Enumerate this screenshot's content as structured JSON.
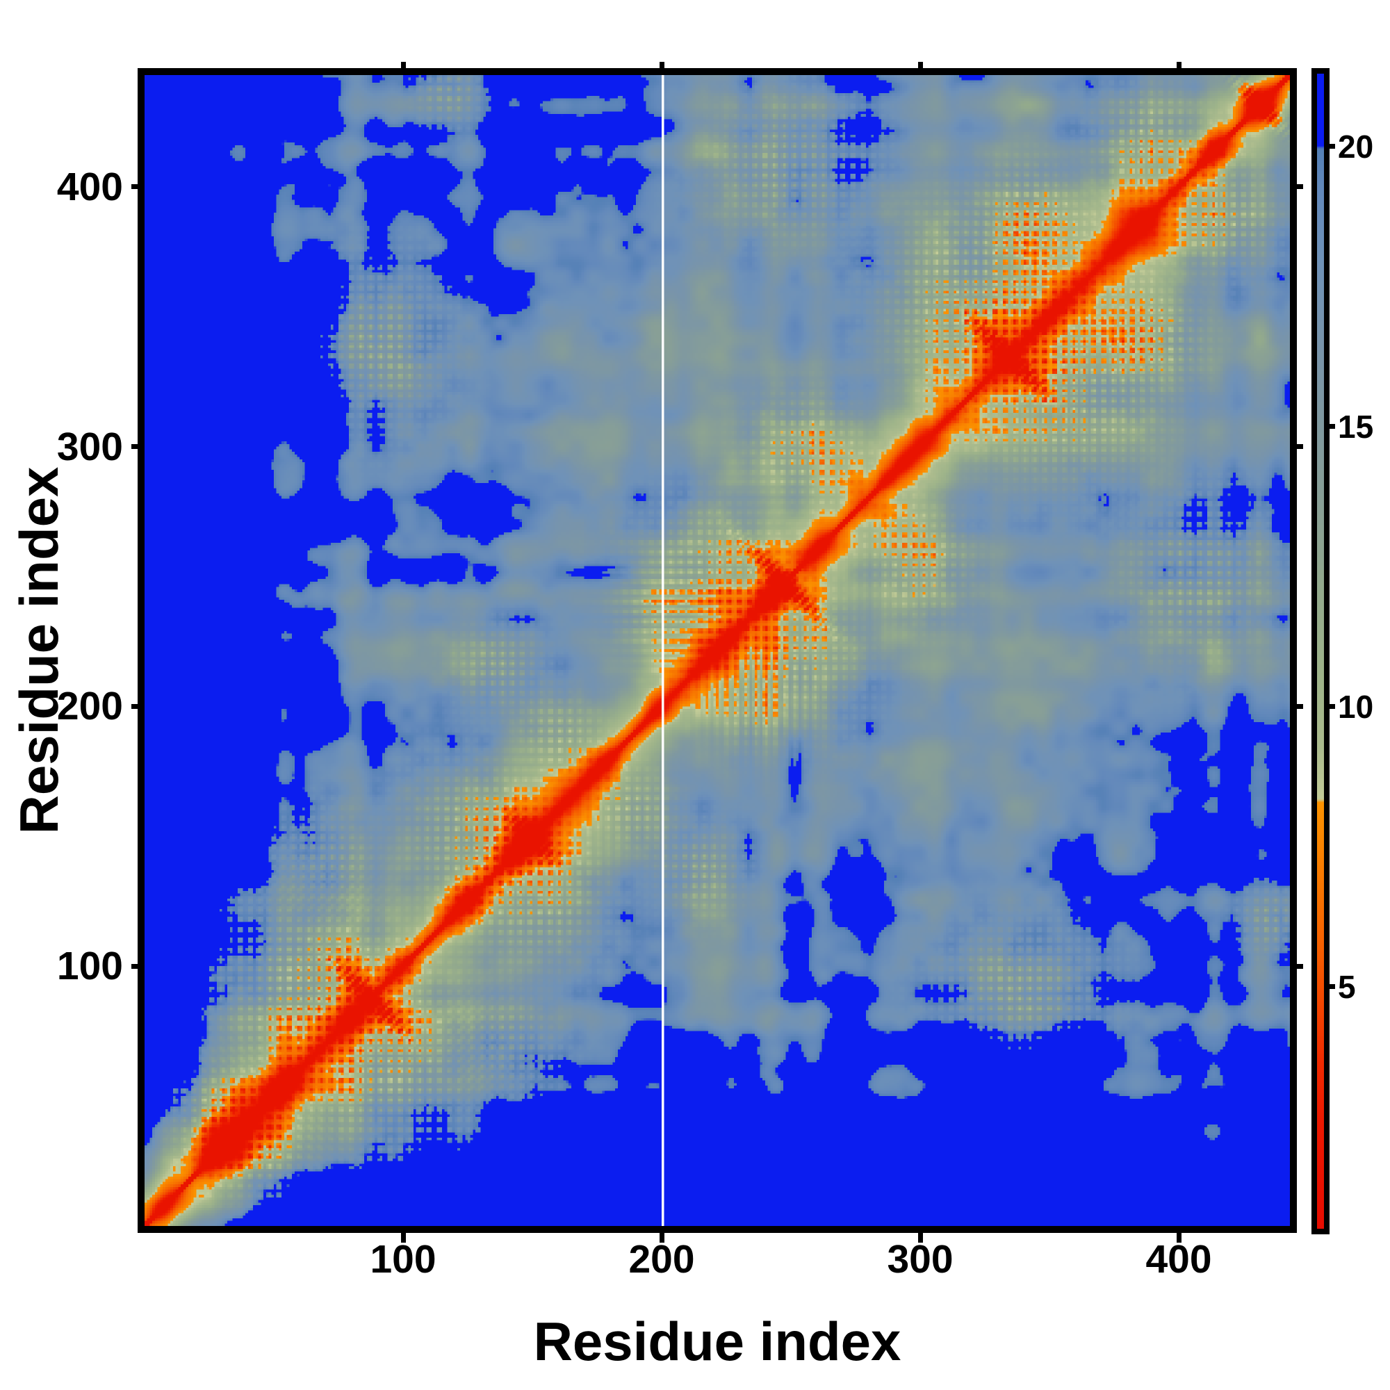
{
  "page": {
    "background": "#ffffff"
  },
  "chart_data": {
    "type": "heatmap",
    "title": "",
    "xlabel": "Residue index",
    "ylabel": "Residue index",
    "x_ticks": [
      100,
      200,
      300,
      400
    ],
    "y_ticks": [
      100,
      200,
      300,
      400
    ],
    "x_range": [
      1,
      443
    ],
    "y_range": [
      1,
      443
    ],
    "n_residues": 443,
    "colorbar": {
      "ticks": [
        5,
        10,
        15,
        20
      ],
      "value_min": 0.68,
      "value_max": 21.3,
      "cap_value": 20,
      "cap_color": "#0b1df0"
    },
    "description": "Symmetric residue-residue distance matrix (contact/distance map). Red diagonal of short distances runs corner to corner, flanked by orange and sage-green halos; background of mid-range distances is steel blue; pairs beyond ~20 (capped) render vivid blue, filling the N-terminal bands and far corners. Speckled orange/green plaid clusters mark inter-domain contacts and antidiagonal X-shaped streaks mark hairpin contacts. A single white column marks a missing residue near index 201.",
    "missing_column_residue": 201,
    "grid": false,
    "legend_position": "right-colorbar",
    "colormap_stops": [
      {
        "v": 0.68,
        "c": "#e60c00"
      },
      {
        "v": 2.6,
        "c": "#ec1900"
      },
      {
        "v": 3.6,
        "c": "#f02a00"
      },
      {
        "v": 4.6,
        "c": "#f34400"
      },
      {
        "v": 5.6,
        "c": "#f55d00"
      },
      {
        "v": 6.6,
        "c": "#f77200"
      },
      {
        "v": 7.5,
        "c": "#f98400"
      },
      {
        "v": 8.3,
        "c": "#fb9300"
      },
      {
        "v": 8.34,
        "c": "#c3cc98"
      },
      {
        "v": 9.3,
        "c": "#abbb8d"
      },
      {
        "v": 10.5,
        "c": "#9fb48a"
      },
      {
        "v": 12.0,
        "c": "#93aa8c"
      },
      {
        "v": 13.5,
        "c": "#89a095"
      },
      {
        "v": 15.0,
        "c": "#80999f"
      },
      {
        "v": 16.5,
        "c": "#7894ab"
      },
      {
        "v": 18.0,
        "c": "#6f92b8"
      },
      {
        "v": 19.2,
        "c": "#6389bb"
      },
      {
        "v": 19.97,
        "c": "#5480b6"
      },
      {
        "v": 20.0,
        "c": "#0b1df0"
      },
      {
        "v": 21.3,
        "c": "#0b1df0"
      }
    ],
    "matrix_generator": {
      "seed": 1337,
      "base": {
        "dmax": 19.5,
        "k0": 14
      },
      "nterm": {
        "amp": 9,
        "scale": 52,
        "pow": 2.2,
        "ramp_start": 12,
        "ramp_len": 45
      },
      "noise": {
        "cell_a": 18,
        "amp_a": 2.3,
        "cell_b": 55,
        "amp_b": 2.4,
        "cell_c": 6,
        "amp_c": 1.0,
        "stripe_cell": 9,
        "stripe_amp": 1.5
      },
      "plaid_period": 3.8,
      "antidiag_width": 3.2,
      "clusters": [
        {
          "lo": 30,
          "hi": 46,
          "rlo": 13,
          "rhi": 13,
          "s": 8.0
        },
        {
          "lo": 62,
          "hi": 95,
          "rlo": 24,
          "rhi": 24,
          "s": 9.5
        },
        {
          "lo": 70,
          "hi": 140,
          "rlo": 13,
          "rhi": 13,
          "s": 8.0
        },
        {
          "lo": 128,
          "hi": 152,
          "rlo": 18,
          "rhi": 18,
          "s": 8.5
        },
        {
          "lo": 138,
          "hi": 215,
          "rlo": 11,
          "rhi": 11,
          "s": 8.0
        },
        {
          "lo": 160,
          "hi": 190,
          "rlo": 10,
          "rhi": 10,
          "s": 7.0
        },
        {
          "lo": 200,
          "hi": 238,
          "rlo": 12,
          "rhi": 12,
          "s": 7.5
        },
        {
          "lo": 218,
          "hi": 248,
          "rlo": 20,
          "rhi": 20,
          "s": 8.0
        },
        {
          "lo": 255,
          "hi": 300,
          "rlo": 14,
          "rhi": 14,
          "s": 7.5
        },
        {
          "lo": 92,
          "hi": 340,
          "rlo": 15,
          "rhi": 19,
          "s": 9.0
        },
        {
          "lo": 325,
          "hi": 358,
          "rlo": 24,
          "rhi": 24,
          "s": 9.5
        },
        {
          "lo": 252,
          "hi": 408,
          "rlo": 20,
          "rhi": 17,
          "s": 8.5
        },
        {
          "lo": 342,
          "hi": 392,
          "rlo": 12,
          "rhi": 12,
          "s": 8.0
        },
        {
          "lo": 118,
          "hi": 436,
          "rlo": 8,
          "rhi": 8,
          "s": 8.0
        },
        {
          "lo": 388,
          "hi": 418,
          "rlo": 14,
          "rhi": 14,
          "s": 8.5
        }
      ],
      "xstreaks": [
        {
          "c": 88,
          "arm": 20,
          "s": 9.0
        },
        {
          "c": 150,
          "arm": 13,
          "s": 8.0
        },
        {
          "c": 248,
          "arm": 24,
          "s": 9.0
        },
        {
          "c": 335,
          "arm": 24,
          "s": 9.5
        },
        {
          "c": 432,
          "arm": 16,
          "s": 9.0
        }
      ]
    }
  }
}
